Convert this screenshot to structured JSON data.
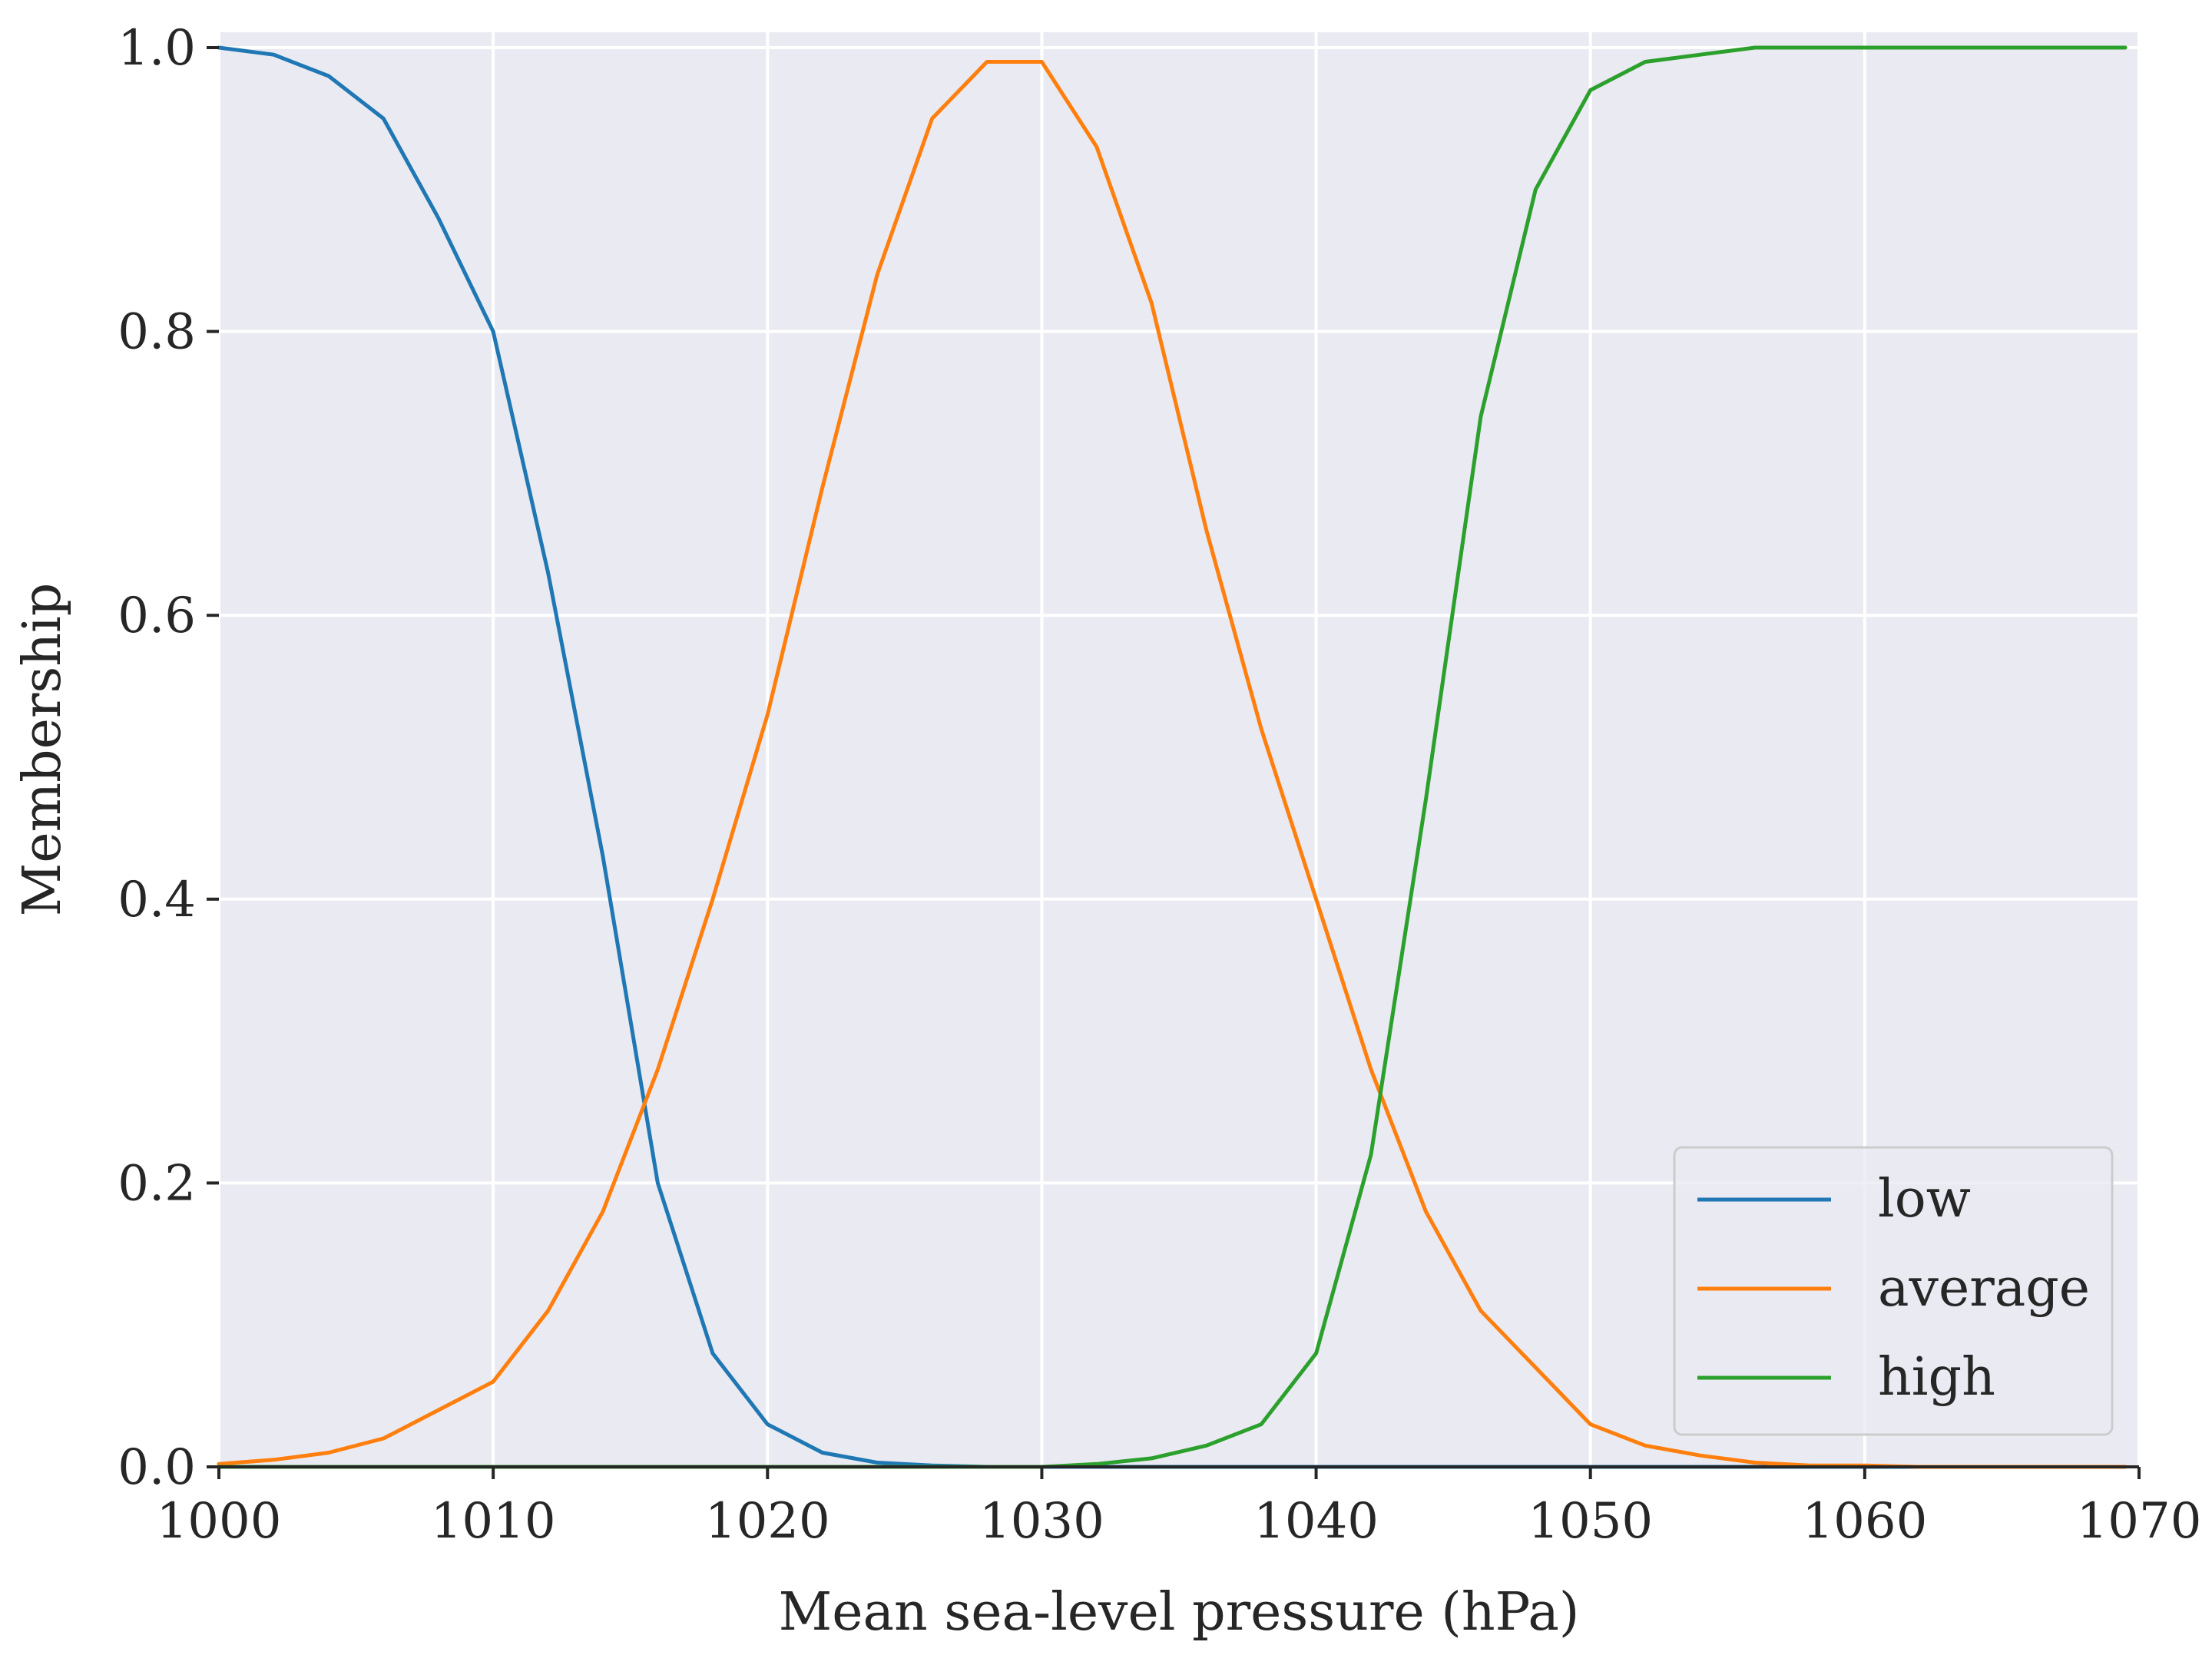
{
  "chart_data": {
    "type": "line",
    "title": "",
    "xlabel": "Mean sea-level pressure (hPa)",
    "ylabel": "Membership",
    "xlim": [
      1000,
      1070
    ],
    "ylim": [
      0,
      1
    ],
    "x_ticks": [
      1000,
      1010,
      1020,
      1030,
      1040,
      1050,
      1060,
      1070
    ],
    "x_tick_labels": [
      "1000",
      "1010",
      "1020",
      "1030",
      "1040",
      "1050",
      "1060",
      "1070"
    ],
    "y_ticks": [
      0,
      0.2,
      0.4,
      0.6,
      0.8,
      1.0
    ],
    "y_tick_labels": [
      "0.0",
      "0.2",
      "0.4",
      "0.6",
      "0.8",
      "1.0"
    ],
    "grid": true,
    "legend_position": "bottom-right",
    "x": [
      1000,
      1002,
      1004,
      1006,
      1008,
      1010,
      1012,
      1014,
      1016,
      1018,
      1020,
      1022,
      1024,
      1026,
      1028,
      1030,
      1032,
      1034,
      1036,
      1038,
      1040,
      1042,
      1044,
      1046,
      1048,
      1050,
      1052,
      1054,
      1056,
      1058,
      1060,
      1062,
      1064,
      1066,
      1068,
      1069.5
    ],
    "series": [
      {
        "name": "low",
        "color": "#1f77b4",
        "values": [
          1.0,
          0.995,
          0.98,
          0.95,
          0.88,
          0.8,
          0.63,
          0.43,
          0.2,
          0.08,
          0.03,
          0.01,
          0.003,
          0.001,
          0.0,
          0.0,
          0.0,
          0.0,
          0.0,
          0.0,
          0.0,
          0.0,
          0.0,
          0.0,
          0.0,
          0.0,
          0.0,
          0.0,
          0.0,
          0.0,
          0.0,
          0.0,
          0.0,
          0.0,
          0.0,
          0.0
        ]
      },
      {
        "name": "average",
        "color": "#ff7f0e",
        "values": [
          0.002,
          0.005,
          0.01,
          0.02,
          0.04,
          0.06,
          0.11,
          0.18,
          0.28,
          0.4,
          0.53,
          0.69,
          0.84,
          0.95,
          0.99,
          0.99,
          0.93,
          0.82,
          0.66,
          0.52,
          0.4,
          0.28,
          0.18,
          0.11,
          0.07,
          0.03,
          0.015,
          0.008,
          0.003,
          0.001,
          0.001,
          0.0,
          0.0,
          0.0,
          0.0,
          0.0
        ]
      },
      {
        "name": "high",
        "color": "#2ca02c",
        "values": [
          0.0,
          0.0,
          0.0,
          0.0,
          0.0,
          0.0,
          0.0,
          0.0,
          0.0,
          0.0,
          0.0,
          0.0,
          0.0,
          0.0,
          0.0,
          0.0,
          0.002,
          0.006,
          0.015,
          0.03,
          0.08,
          0.22,
          0.47,
          0.74,
          0.9,
          0.97,
          0.99,
          0.995,
          1.0,
          1.0,
          1.0,
          1.0,
          1.0,
          1.0,
          1.0,
          1.0
        ]
      }
    ]
  }
}
